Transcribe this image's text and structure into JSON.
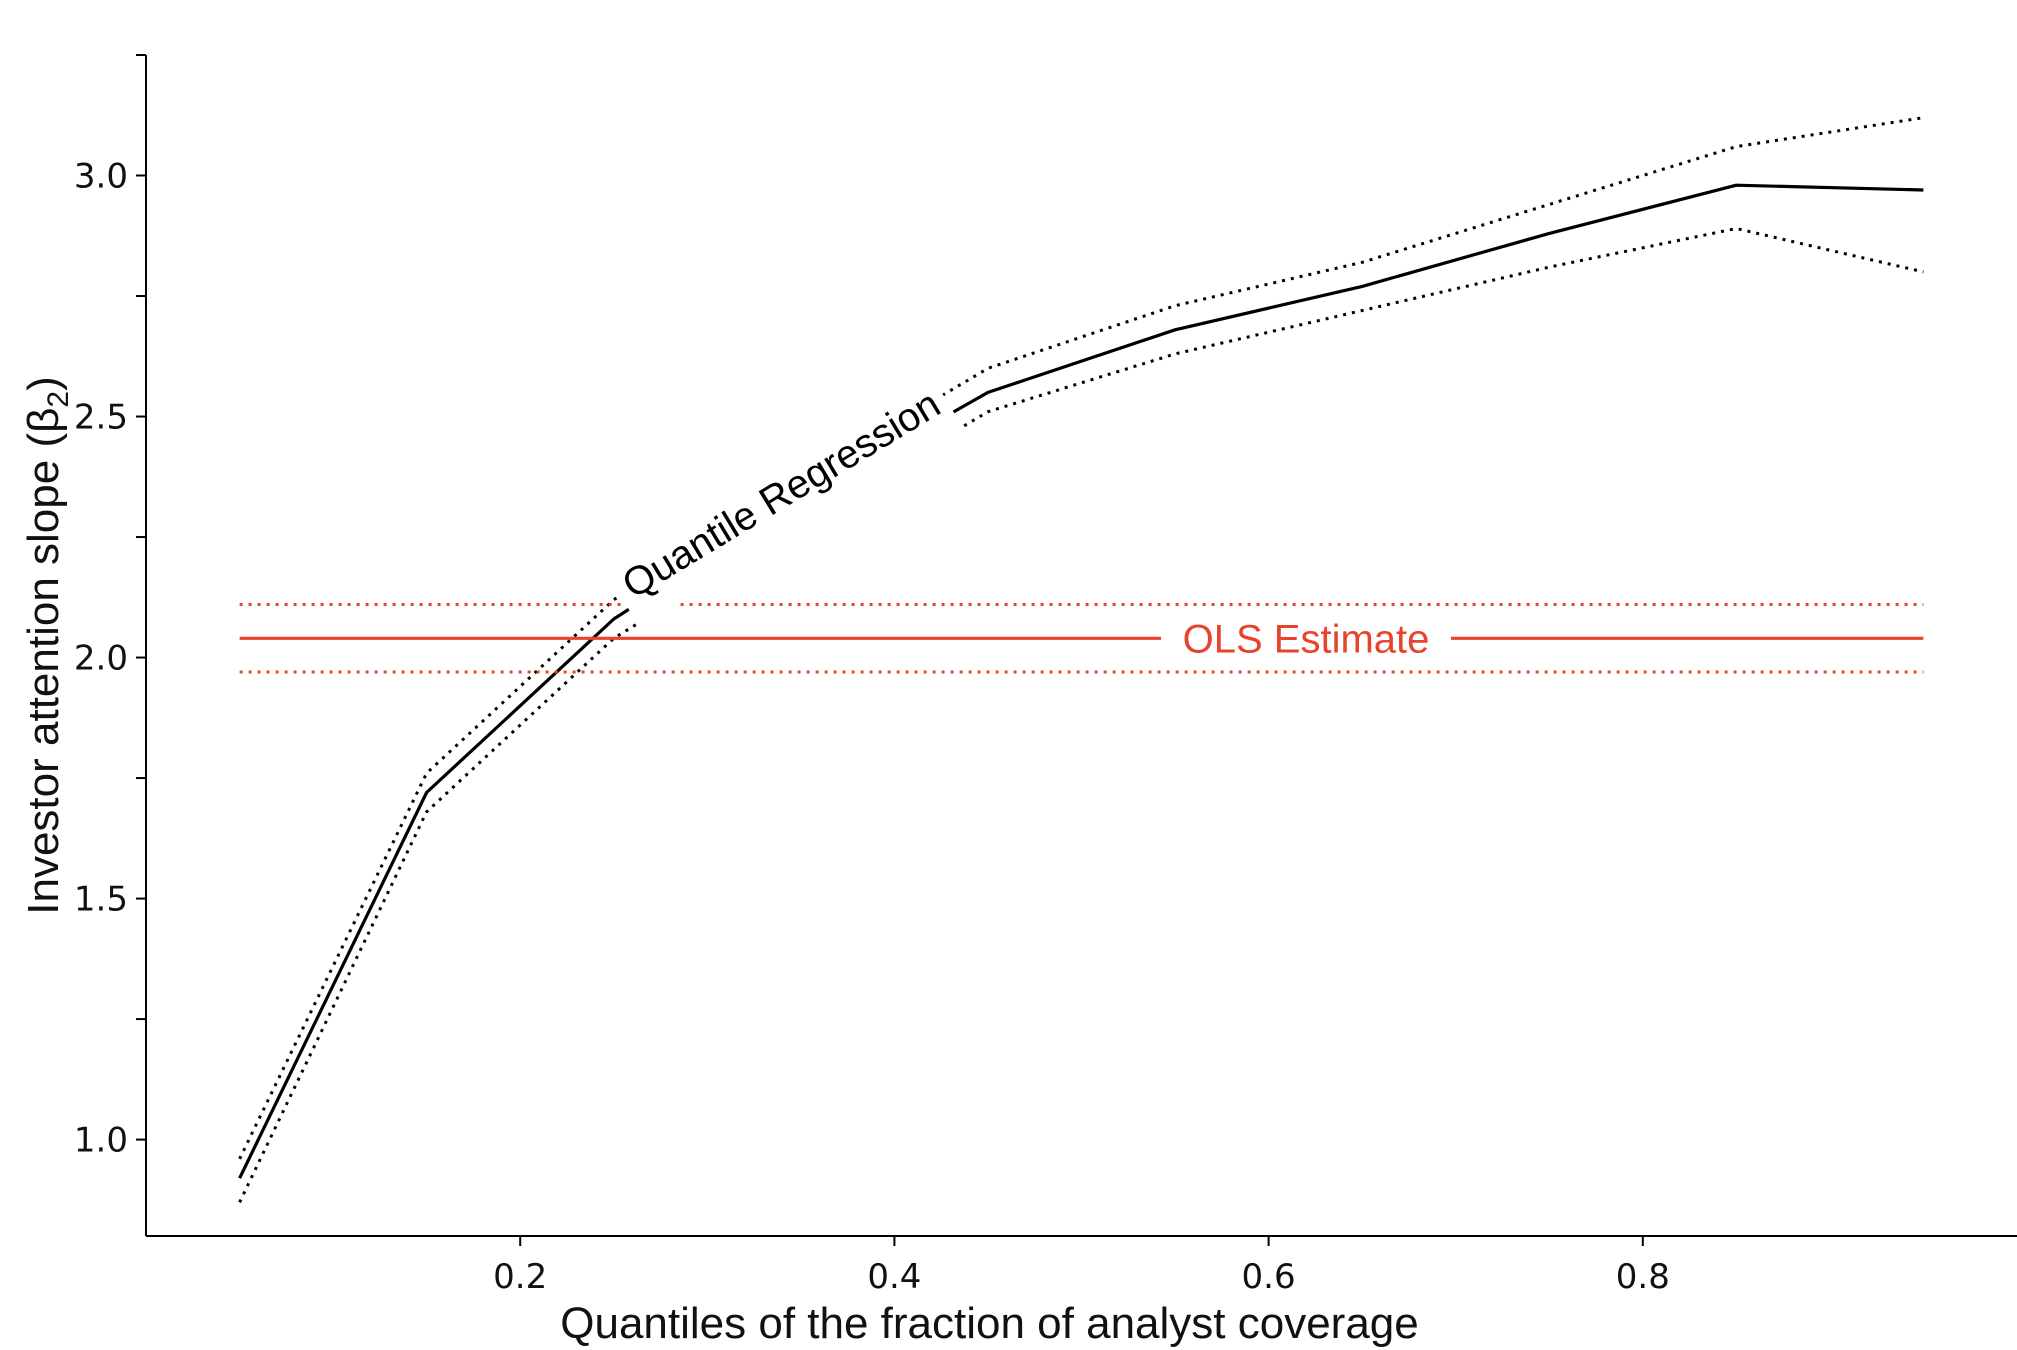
{
  "chart_data": {
    "type": "line",
    "title": "",
    "xlabel": "Quantiles of the fraction of analyst coverage",
    "ylabel": "Investor attention slope (β",
    "ylabel_sub": "2",
    "ylabel_close": ")",
    "xlim": [
      0.0,
      1.0
    ],
    "ylim": [
      0.8,
      3.25
    ],
    "xticks": [
      0.2,
      0.4,
      0.6,
      0.8
    ],
    "xtick_labels": [
      "0.2",
      "0.4",
      "0.6",
      "0.8"
    ],
    "yticks": [
      1.0,
      1.25,
      1.5,
      1.75,
      2.0,
      2.25,
      2.5,
      2.75,
      3.0,
      3.25
    ],
    "ytick_labels": [
      "1.0",
      "",
      "1.5",
      "",
      "2.0",
      "",
      "2.5",
      "",
      "3.0",
      ""
    ],
    "grid": false,
    "legend": "none",
    "series": [
      {
        "name": "Quantile Regression",
        "color": "#000000",
        "style": "solid",
        "x": [
          0.05,
          0.15,
          0.25,
          0.35,
          0.45,
          0.55,
          0.65,
          0.75,
          0.85,
          0.95
        ],
        "y": [
          0.92,
          1.72,
          2.08,
          2.33,
          2.55,
          2.68,
          2.77,
          2.88,
          2.98,
          2.97
        ]
      },
      {
        "name": "",
        "color": "#000000",
        "style": "dotted",
        "x": [
          0.05,
          0.15,
          0.25,
          0.35,
          0.45,
          0.55,
          0.65,
          0.75,
          0.85,
          0.95
        ],
        "y": [
          0.96,
          1.76,
          2.12,
          2.37,
          2.6,
          2.73,
          2.82,
          2.94,
          3.06,
          3.12
        ]
      },
      {
        "name": "",
        "color": "#000000",
        "style": "dotted",
        "x": [
          0.05,
          0.15,
          0.25,
          0.35,
          0.45,
          0.55,
          0.65,
          0.75,
          0.85,
          0.95
        ],
        "y": [
          0.87,
          1.68,
          2.04,
          2.28,
          2.51,
          2.63,
          2.72,
          2.81,
          2.89,
          2.8
        ]
      },
      {
        "name": "OLS Estimate",
        "color": "#e8432c",
        "style": "solid",
        "x": [
          0.05,
          0.95
        ],
        "y": [
          2.04,
          2.04
        ]
      },
      {
        "name": "",
        "color": "#e8432c",
        "style": "dotted",
        "x": [
          0.05,
          0.95
        ],
        "y": [
          2.11,
          2.11
        ]
      },
      {
        "name": "",
        "color": "#e8432c",
        "style": "dotted",
        "x": [
          0.05,
          0.95
        ],
        "y": [
          1.97,
          1.97
        ]
      }
    ]
  }
}
